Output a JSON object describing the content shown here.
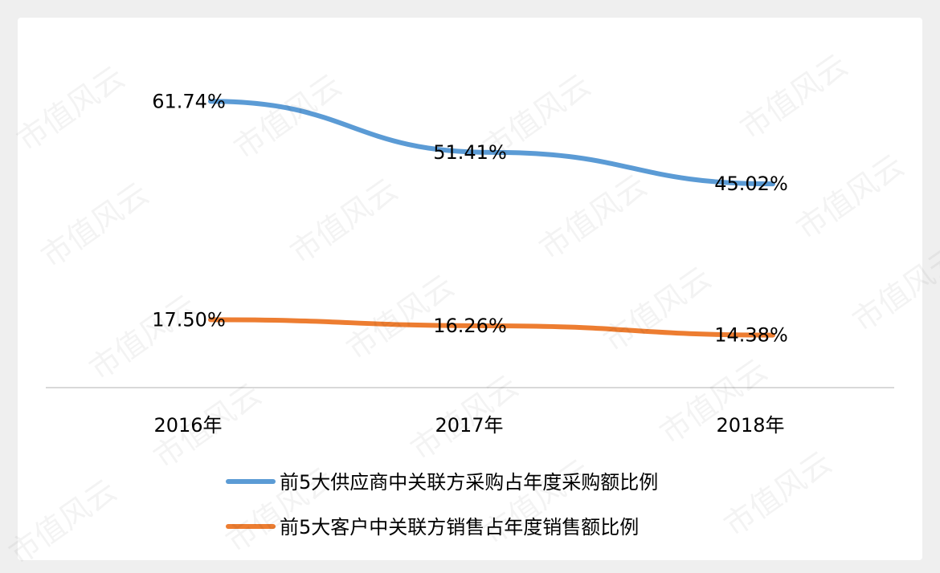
{
  "chart_data": {
    "type": "line",
    "categories": [
      "2016年",
      "2017年",
      "2018年"
    ],
    "series": [
      {
        "name": "前5大供应商中关联方采购占年度采购额比例",
        "values": [
          61.74,
          51.41,
          45.02
        ],
        "labels": [
          "61.74%",
          "51.41%",
          "45.02%"
        ],
        "color": "#5b9bd5"
      },
      {
        "name": "前5大客户中关联方销售占年度销售额比例",
        "values": [
          17.5,
          16.26,
          14.38
        ],
        "labels": [
          "17.50%",
          "16.26%",
          "14.38%"
        ],
        "color": "#ed7d31"
      }
    ],
    "ylim": [
      0,
      70
    ],
    "grid": false,
    "legend_position": "bottom"
  },
  "watermark_text": "市值风云"
}
